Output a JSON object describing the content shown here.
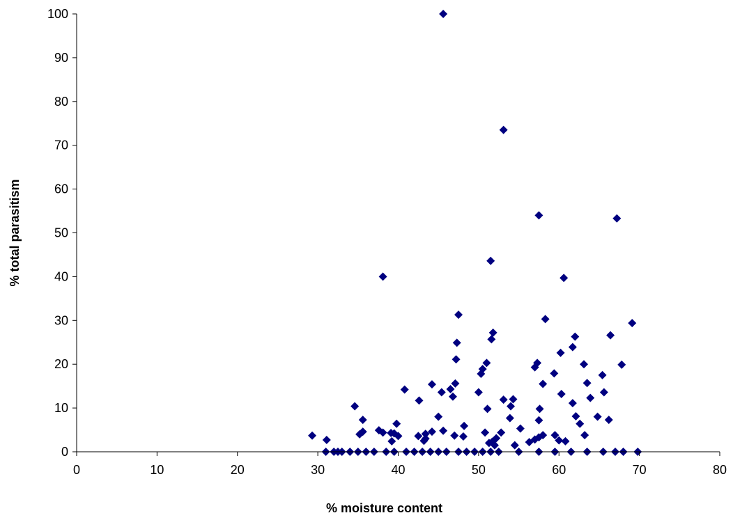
{
  "chart_data": {
    "type": "scatter",
    "title": "",
    "xlabel": "% moisture content",
    "ylabel": "% total parasitism",
    "xlim": [
      0,
      80
    ],
    "ylim": [
      0,
      100
    ],
    "x_ticks": [
      "0",
      "10",
      "20",
      "30",
      "40",
      "50",
      "60",
      "70",
      "80"
    ],
    "y_ticks": [
      "0",
      "10",
      "20",
      "30",
      "40",
      "50",
      "60",
      "70",
      "80",
      "90",
      "100"
    ],
    "grid": false,
    "legend": "none",
    "marker": "diamond",
    "marker_color": "#000080",
    "series": [
      {
        "points": [
          [
            29.3,
            3.7
          ],
          [
            31.1,
            2.7
          ],
          [
            38.1,
            40.0
          ],
          [
            45.6,
            100.0
          ],
          [
            53.1,
            73.5
          ],
          [
            57.5,
            54.0
          ],
          [
            67.2,
            53.3
          ],
          [
            51.5,
            43.6
          ],
          [
            60.6,
            39.7
          ],
          [
            47.5,
            31.3
          ],
          [
            58.3,
            30.3
          ],
          [
            69.1,
            29.4
          ],
          [
            51.8,
            27.2
          ],
          [
            51.6,
            25.7
          ],
          [
            62.0,
            26.3
          ],
          [
            66.4,
            26.6
          ],
          [
            47.3,
            24.9
          ],
          [
            61.7,
            23.9
          ],
          [
            60.2,
            22.6
          ],
          [
            47.2,
            21.1
          ],
          [
            57.3,
            20.3
          ],
          [
            57.0,
            19.3
          ],
          [
            51.0,
            20.3
          ],
          [
            50.5,
            18.9
          ],
          [
            50.3,
            17.8
          ],
          [
            63.1,
            20.0
          ],
          [
            67.8,
            19.9
          ],
          [
            59.4,
            17.9
          ],
          [
            65.4,
            17.5
          ],
          [
            58.0,
            15.5
          ],
          [
            63.5,
            15.7
          ],
          [
            44.2,
            15.4
          ],
          [
            47.1,
            15.6
          ],
          [
            46.5,
            14.3
          ],
          [
            46.8,
            12.6
          ],
          [
            45.4,
            13.6
          ],
          [
            40.8,
            14.2
          ],
          [
            50.0,
            13.6
          ],
          [
            60.3,
            13.2
          ],
          [
            65.6,
            13.6
          ],
          [
            53.1,
            11.9
          ],
          [
            54.3,
            12.0
          ],
          [
            61.7,
            11.1
          ],
          [
            63.9,
            12.3
          ],
          [
            42.6,
            11.7
          ],
          [
            34.6,
            10.4
          ],
          [
            54.0,
            10.4
          ],
          [
            57.6,
            9.8
          ],
          [
            51.1,
            9.8
          ],
          [
            62.1,
            8.1
          ],
          [
            45.0,
            8.0
          ],
          [
            35.6,
            7.3
          ],
          [
            57.5,
            7.2
          ],
          [
            66.2,
            7.3
          ],
          [
            64.8,
            8.0
          ],
          [
            62.6,
            6.4
          ],
          [
            39.8,
            6.4
          ],
          [
            48.2,
            5.9
          ],
          [
            53.9,
            7.7
          ],
          [
            55.2,
            5.3
          ],
          [
            37.6,
            4.9
          ],
          [
            38.1,
            4.4
          ],
          [
            35.6,
            4.6
          ],
          [
            35.2,
            4.0
          ],
          [
            45.6,
            4.8
          ],
          [
            50.8,
            4.4
          ],
          [
            52.8,
            4.4
          ],
          [
            39.5,
            4.2
          ],
          [
            39.1,
            4.3
          ],
          [
            42.5,
            3.6
          ],
          [
            43.4,
            4.1
          ],
          [
            44.2,
            4.6
          ],
          [
            47.0,
            3.7
          ],
          [
            48.1,
            3.5
          ],
          [
            40.0,
            3.6
          ],
          [
            43.4,
            3.0
          ],
          [
            39.2,
            2.4
          ],
          [
            43.2,
            2.5
          ],
          [
            51.7,
            2.3
          ],
          [
            52.2,
            3.1
          ],
          [
            51.3,
            2.0
          ],
          [
            57.0,
            2.8
          ],
          [
            57.5,
            3.3
          ],
          [
            58.0,
            3.8
          ],
          [
            59.5,
            3.8
          ],
          [
            60.0,
            2.6
          ],
          [
            60.8,
            2.4
          ],
          [
            63.2,
            3.8
          ],
          [
            56.3,
            2.2
          ],
          [
            52.0,
            1.5
          ],
          [
            54.5,
            1.5
          ],
          [
            31.0,
            0
          ],
          [
            32.0,
            0
          ],
          [
            32.5,
            0
          ],
          [
            33.0,
            0
          ],
          [
            34.0,
            0
          ],
          [
            35.0,
            0
          ],
          [
            36.0,
            0
          ],
          [
            37.0,
            0
          ],
          [
            38.5,
            0
          ],
          [
            39.5,
            0
          ],
          [
            41.0,
            0
          ],
          [
            42.0,
            0
          ],
          [
            43.0,
            0
          ],
          [
            44.0,
            0
          ],
          [
            45.0,
            0
          ],
          [
            46.0,
            0
          ],
          [
            47.5,
            0
          ],
          [
            48.5,
            0
          ],
          [
            49.5,
            0
          ],
          [
            50.5,
            0
          ],
          [
            51.5,
            0
          ],
          [
            52.5,
            0
          ],
          [
            55.0,
            0
          ],
          [
            57.5,
            0
          ],
          [
            59.5,
            0
          ],
          [
            61.5,
            0
          ],
          [
            63.5,
            0
          ],
          [
            65.5,
            0
          ],
          [
            67.0,
            0
          ],
          [
            68.0,
            0
          ],
          [
            69.8,
            0
          ]
        ]
      }
    ]
  }
}
